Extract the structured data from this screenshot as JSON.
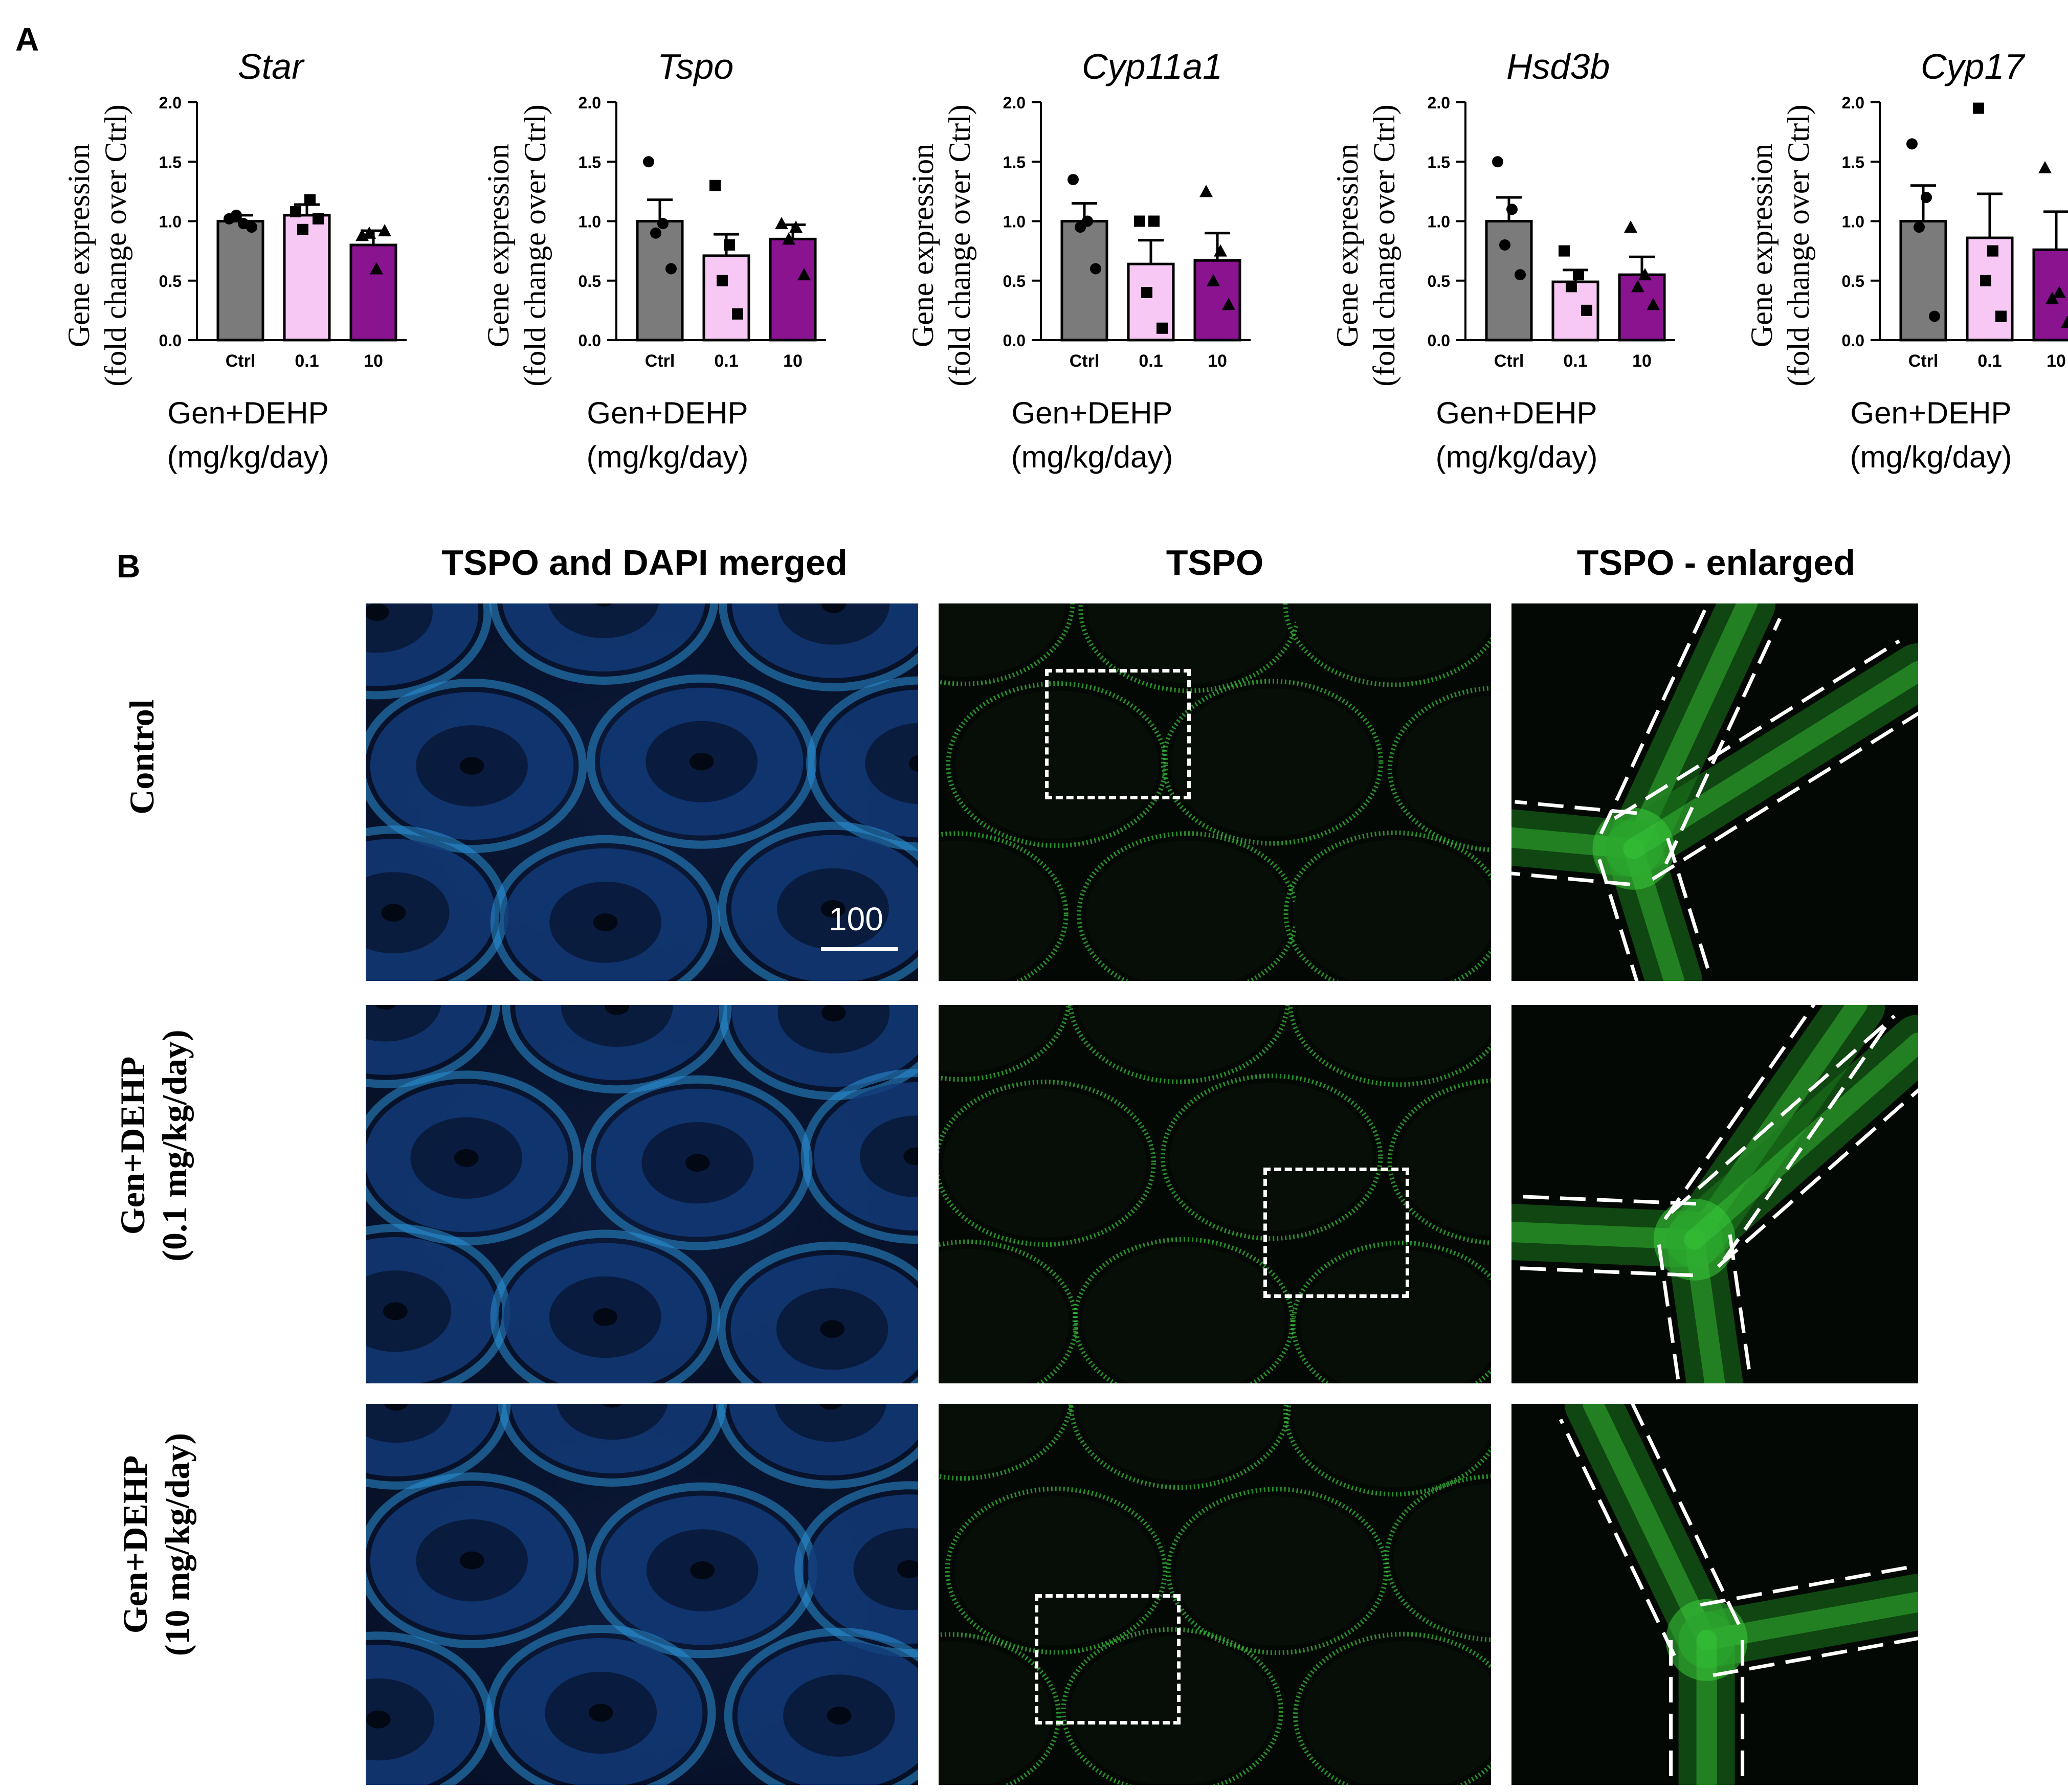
{
  "panel_a": {
    "letter": "A"
  },
  "panel_b": {
    "letter": "B",
    "column_headers": [
      "TSPO and DAPI merged",
      "TSPO",
      "TSPO - enlarged"
    ],
    "row_labels": [
      {
        "line1": "Control",
        "line2": ""
      },
      {
        "line1": "Gen+DEHP",
        "line2": "(0.1 mg/kg/day)"
      },
      {
        "line1": "Gen+DEHP",
        "line2": "(10 mg/kg/day)"
      }
    ],
    "scale_bar_label": "100",
    "colors": {
      "merged_stain": "#2a8fd6",
      "tspo_stain": "#38c83a",
      "roi_box": "#ffffff"
    }
  },
  "chart_data": [
    {
      "type": "bar",
      "title": "Star",
      "ylabel": "Gene expression\n(fold change over Ctrl)",
      "xlabel": "Gen+DEHP\n(mg/kg/day)",
      "categories": [
        "Ctrl",
        "0.1",
        "10"
      ],
      "yticks": [
        "0.0",
        "0.5",
        "1.0",
        "1.5",
        "2.0"
      ],
      "ylim": [
        0,
        2
      ],
      "values": [
        1.0,
        1.05,
        0.8
      ],
      "errors": [
        0.05,
        0.09,
        0.12
      ],
      "points": [
        [
          1.02,
          0.98,
          1.05,
          0.95
        ],
        [
          1.08,
          1.18,
          0.93,
          1.02
        ],
        [
          0.88,
          0.6,
          0.9,
          0.92
        ]
      ],
      "colors": [
        "#7b7b7b",
        "#f7c8f4",
        "#8a138f"
      ],
      "markers": [
        "circle",
        "square",
        "triangle"
      ]
    },
    {
      "type": "bar",
      "title": "Tspo",
      "ylabel": "Gene expression\n(fold change over Ctrl)",
      "xlabel": "Gen+DEHP\n(mg/kg/day)",
      "categories": [
        "Ctrl",
        "0.1",
        "10"
      ],
      "yticks": [
        "0.0",
        "0.5",
        "1.0",
        "1.5",
        "2.0"
      ],
      "ylim": [
        0,
        2
      ],
      "values": [
        1.0,
        0.71,
        0.85
      ],
      "errors": [
        0.18,
        0.18,
        0.12
      ],
      "points": [
        [
          1.5,
          0.98,
          0.9,
          0.6
        ],
        [
          1.3,
          0.8,
          0.5,
          0.22
        ],
        [
          0.98,
          0.95,
          0.85,
          0.55
        ]
      ],
      "colors": [
        "#7b7b7b",
        "#f7c8f4",
        "#8a138f"
      ],
      "markers": [
        "circle",
        "square",
        "triangle"
      ]
    },
    {
      "type": "bar",
      "title": "Cyp11a1",
      "ylabel": "Gene expression\n(fold change over Ctrl)",
      "xlabel": "Gen+DEHP\n(mg/kg/day)",
      "categories": [
        "Ctrl",
        "0.1",
        "10"
      ],
      "yticks": [
        "0.0",
        "0.5",
        "1.0",
        "1.5",
        "2.0"
      ],
      "ylim": [
        0,
        2
      ],
      "values": [
        1.0,
        0.64,
        0.67
      ],
      "errors": [
        0.15,
        0.2,
        0.23
      ],
      "points": [
        [
          1.35,
          1.0,
          0.95,
          0.6
        ],
        [
          1.0,
          1.0,
          0.4,
          0.1
        ],
        [
          1.25,
          0.75,
          0.5,
          0.3
        ]
      ],
      "colors": [
        "#7b7b7b",
        "#f7c8f4",
        "#8a138f"
      ],
      "markers": [
        "circle",
        "square",
        "triangle"
      ]
    },
    {
      "type": "bar",
      "title": "Hsd3b",
      "ylabel": "Gene expression\n(fold change over Ctrl)",
      "xlabel": "Gen+DEHP\n(mg/kg/day)",
      "categories": [
        "Ctrl",
        "0.1",
        "10"
      ],
      "yticks": [
        "0.0",
        "0.5",
        "1.0",
        "1.5",
        "2.0"
      ],
      "ylim": [
        0,
        2
      ],
      "values": [
        1.0,
        0.49,
        0.55
      ],
      "errors": [
        0.2,
        0.1,
        0.15
      ],
      "points": [
        [
          1.5,
          1.1,
          0.8,
          0.55
        ],
        [
          0.75,
          0.55,
          0.45,
          0.25
        ],
        [
          0.95,
          0.55,
          0.45,
          0.3
        ]
      ],
      "colors": [
        "#7b7b7b",
        "#f7c8f4",
        "#8a138f"
      ],
      "markers": [
        "circle",
        "square",
        "triangle"
      ]
    },
    {
      "type": "bar",
      "title": "Cyp17",
      "ylabel": "Gene expression\n(fold change over Ctrl)",
      "xlabel": "Gen+DEHP\n(mg/kg/day)",
      "categories": [
        "Ctrl",
        "0.1",
        "10"
      ],
      "yticks": [
        "0.0",
        "0.5",
        "1.0",
        "1.5",
        "2.0"
      ],
      "ylim": [
        0,
        2
      ],
      "values": [
        1.0,
        0.86,
        0.76
      ],
      "errors": [
        0.3,
        0.37,
        0.32
      ],
      "points": [
        [
          1.65,
          1.2,
          0.95,
          0.2
        ],
        [
          1.95,
          0.75,
          0.5,
          0.2
        ],
        [
          1.45,
          0.4,
          0.35,
          0.15
        ]
      ],
      "colors": [
        "#7b7b7b",
        "#f7c8f4",
        "#8a138f"
      ],
      "markers": [
        "circle",
        "square",
        "triangle"
      ]
    }
  ]
}
